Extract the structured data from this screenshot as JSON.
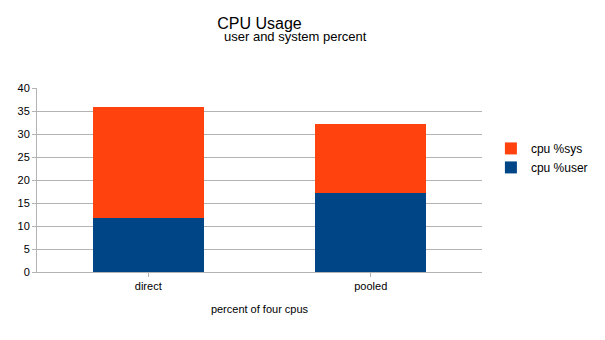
{
  "chart_data": {
    "type": "bar",
    "title": "CPU Usage",
    "subtitle": "user and system percent",
    "x_label": "percent of four cpus",
    "categories": [
      "direct",
      "pooled"
    ],
    "series": [
      {
        "name": "cpu %user",
        "color": "#004586",
        "values": [
          11.8,
          17.1
        ]
      },
      {
        "name": "cpu %sys",
        "color": "#ff420e",
        "values": [
          24.0,
          15.0
        ]
      }
    ],
    "stacked": true,
    "ylim": [
      0,
      40
    ],
    "yticks": [
      0,
      5,
      10,
      15,
      20,
      25,
      30,
      35,
      40
    ],
    "grid": true,
    "legend": "right"
  }
}
